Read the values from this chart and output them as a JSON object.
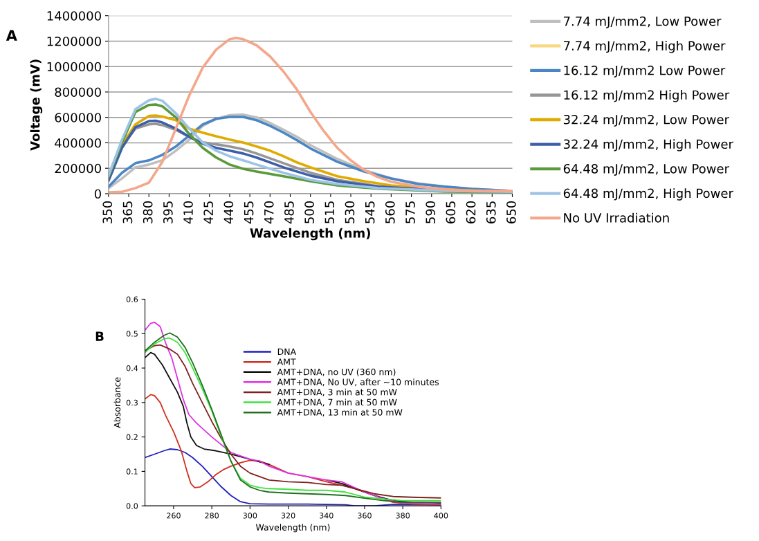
{
  "chart_data": [
    {
      "type": "line",
      "xlabel": "Wavelength (nm)",
      "ylabel": "Voltage (mV)",
      "annotations": [
        "A"
      ],
      "xlim": [
        350,
        650
      ],
      "xticks": [
        350,
        365,
        380,
        395,
        410,
        425,
        440,
        455,
        470,
        485,
        500,
        515,
        530,
        545,
        560,
        575,
        590,
        605,
        620,
        635,
        650
      ],
      "ylim": [
        0,
        1400000
      ],
      "yticks": [
        0,
        200000,
        400000,
        600000,
        800000,
        1000000,
        1200000,
        1400000
      ],
      "grid": "y",
      "legend": "right",
      "marker": "none",
      "line_style": "solid",
      "series": [
        {
          "name": "7.74 mJ/mm2, Low Power",
          "color": "#bfbfbf",
          "x": [
            350,
            360,
            370,
            380,
            390,
            400,
            410,
            420,
            430,
            440,
            450,
            460,
            470,
            480,
            490,
            500,
            520,
            540,
            560,
            580,
            600,
            620,
            650
          ],
          "values": [
            44000,
            120000,
            207000,
            229000,
            262000,
            338000,
            425000,
            534000,
            589000,
            617000,
            622000,
            600000,
            556000,
            502000,
            447000,
            382000,
            273000,
            185000,
            120000,
            81000,
            55000,
            37000,
            22000
          ]
        },
        {
          "name": "7.74 mJ/mm2, High Power",
          "color": "#f9d77e"
        },
        {
          "name": "16.12 mJ/mm2 Low Power",
          "color": "#4a86c5",
          "x": [
            350,
            360,
            370,
            380,
            390,
            400,
            410,
            420,
            430,
            440,
            450,
            460,
            470,
            480,
            490,
            500,
            520,
            540,
            560,
            580,
            600,
            620,
            650
          ],
          "values": [
            55000,
            164000,
            240000,
            262000,
            305000,
            371000,
            458000,
            545000,
            589000,
            604000,
            604000,
            578000,
            534000,
            480000,
            421000,
            356000,
            251000,
            174000,
            120000,
            76000,
            55000,
            37000,
            22000
          ]
        },
        {
          "name": "16.12 mJ/mm2 High Power",
          "color": "#969696",
          "x": [
            350,
            360,
            370,
            380,
            385,
            390,
            400,
            410,
            420,
            430,
            440,
            450,
            460,
            480,
            500,
            520,
            550,
            600,
            650
          ],
          "values": [
            109000,
            371000,
            512000,
            545000,
            549000,
            539000,
            502000,
            447000,
            403000,
            388000,
            371000,
            349000,
            316000,
            240000,
            164000,
            109000,
            59000,
            28000,
            15000
          ]
        },
        {
          "name": "32.24 mJ/mm2, Low Power",
          "color": "#e0ab00",
          "x": [
            350,
            360,
            370,
            380,
            385,
            390,
            400,
            410,
            420,
            430,
            440,
            450,
            460,
            470,
            480,
            490,
            500,
            520,
            540,
            560,
            600,
            650
          ],
          "values": [
            120000,
            382000,
            545000,
            611000,
            615000,
            606000,
            578000,
            512000,
            480000,
            451000,
            425000,
            403000,
            371000,
            338000,
            294000,
            246000,
            207000,
            137000,
            98000,
            65000,
            33000,
            15000
          ]
        },
        {
          "name": "32.24 mJ/mm2, High Power",
          "color": "#3d5ea8",
          "x": [
            350,
            360,
            370,
            380,
            385,
            390,
            400,
            410,
            420,
            430,
            440,
            450,
            460,
            480,
            500,
            520,
            550,
            600,
            650
          ],
          "values": [
            102000,
            360000,
            523000,
            571000,
            574000,
            560000,
            512000,
            447000,
            393000,
            360000,
            338000,
            316000,
            284000,
            207000,
            142000,
            98000,
            55000,
            26000,
            15000
          ]
        },
        {
          "name": "64.48 mJ/mm2, Low Power",
          "color": "#5a9a3a",
          "x": [
            350,
            360,
            370,
            380,
            385,
            390,
            400,
            410,
            420,
            430,
            440,
            450,
            460,
            480,
            500,
            520,
            550,
            600,
            650
          ],
          "values": [
            131000,
            403000,
            643000,
            698000,
            702000,
            687000,
            600000,
            469000,
            360000,
            284000,
            229000,
            196000,
            174000,
            137000,
            98000,
            65000,
            39000,
            17000,
            11000
          ]
        },
        {
          "name": "64.48 mJ/mm2, High Power",
          "color": "#9dc3e6",
          "x": [
            350,
            360,
            370,
            380,
            385,
            390,
            400,
            410,
            420,
            430,
            440,
            450,
            460,
            480,
            500,
            520,
            550,
            600,
            650
          ],
          "values": [
            142000,
            425000,
            665000,
            735000,
            746000,
            731000,
            632000,
            512000,
            403000,
            338000,
            294000,
            262000,
            229000,
            164000,
            109000,
            76000,
            44000,
            22000,
            15000
          ]
        },
        {
          "name": "No UV Irradiation",
          "color": "#f4a78a",
          "x": [
            350,
            360,
            370,
            380,
            390,
            400,
            410,
            420,
            430,
            440,
            445,
            450,
            460,
            470,
            480,
            490,
            500,
            510,
            520,
            530,
            540,
            550,
            560,
            580,
            600,
            620,
            650
          ],
          "values": [
            10000,
            15000,
            44000,
            87000,
            250000,
            512000,
            774000,
            992000,
            1134000,
            1215000,
            1226000,
            1215000,
            1167000,
            1080000,
            960000,
            818000,
            643000,
            491000,
            360000,
            262000,
            185000,
            131000,
            94000,
            55000,
            33000,
            22000,
            22000
          ]
        }
      ]
    },
    {
      "type": "line",
      "xlabel": "Wavelength (nm)",
      "ylabel": "Absorbance",
      "annotations": [
        "B"
      ],
      "xlim": [
        245,
        400
      ],
      "xticks": [
        260,
        280,
        300,
        320,
        340,
        360,
        380,
        400
      ],
      "ylim": [
        0,
        0.6
      ],
      "yticks": [
        {
          "value": 0,
          "label": "0.0"
        },
        0.1,
        0.2,
        0.3,
        0.4,
        0.5,
        0.6
      ],
      "grid": false,
      "legend": "top right",
      "marker": "none",
      "line_style": "solid",
      "series": [
        {
          "name": "DNA",
          "color": "#2020c0",
          "x": [
            245,
            250,
            255,
            258,
            262,
            266,
            270,
            275,
            280,
            285,
            290,
            295,
            300,
            310,
            330,
            350,
            355,
            365,
            375,
            400
          ],
          "values": [
            0.14,
            0.15,
            0.16,
            0.165,
            0.163,
            0.155,
            0.14,
            0.115,
            0.085,
            0.055,
            0.03,
            0.012,
            0.006,
            0.005,
            0.005,
            0.003,
            0.0,
            0.0,
            0.004,
            0.003
          ]
        },
        {
          "name": "AMT",
          "color": "#d03020",
          "x": [
            245,
            248,
            250,
            253,
            256,
            260,
            264,
            267,
            269,
            271,
            274,
            278,
            282,
            286,
            290,
            295,
            300,
            305,
            310,
            320,
            330,
            340,
            348,
            355,
            365,
            375,
            385,
            400
          ],
          "values": [
            0.31,
            0.323,
            0.32,
            0.3,
            0.26,
            0.215,
            0.16,
            0.1,
            0.065,
            0.053,
            0.055,
            0.07,
            0.09,
            0.105,
            0.115,
            0.125,
            0.132,
            0.13,
            0.12,
            0.095,
            0.085,
            0.07,
            0.06,
            0.05,
            0.03,
            0.01,
            0.005,
            0.003
          ]
        },
        {
          "name": "AMT+DNA, no UV (360 nm)",
          "color": "#101010",
          "x": [
            245,
            248,
            250,
            254,
            258,
            262,
            265,
            267,
            269,
            272,
            276,
            282,
            290,
            300,
            310,
            320,
            330,
            340,
            348,
            355,
            365,
            375,
            385,
            400
          ],
          "values": [
            0.43,
            0.445,
            0.44,
            0.41,
            0.37,
            0.33,
            0.29,
            0.24,
            0.2,
            0.175,
            0.165,
            0.16,
            0.15,
            0.135,
            0.12,
            null,
            null,
            0.075,
            0.065,
            0.05,
            0.03,
            0.015,
            0.01,
            0.008
          ]
        },
        {
          "name": "AMT+DNA, No UV, after ~10 minutes",
          "color": "#e030e0",
          "x": [
            245,
            248,
            250,
            253,
            256,
            259,
            262,
            265,
            268,
            272,
            280,
            290,
            300,
            305,
            310,
            320,
            330,
            340,
            348,
            352,
            360,
            370,
            380,
            400
          ],
          "values": [
            0.51,
            0.53,
            0.533,
            0.52,
            0.47,
            0.43,
            0.37,
            0.31,
            0.265,
            0.24,
            0.2,
            0.155,
            0.135,
            0.13,
            0.115,
            0.095,
            0.085,
            0.075,
            0.07,
            0.06,
            0.04,
            0.02,
            0.008,
            0.005
          ]
        },
        {
          "name": "AMT+DNA, 3 min at 50 mW",
          "color": "#802020",
          "x": [
            245,
            250,
            253,
            258,
            262,
            266,
            270,
            275,
            280,
            285,
            290,
            295,
            300,
            305,
            310,
            320,
            330,
            340,
            348,
            355,
            365,
            375,
            385,
            400
          ],
          "values": [
            0.45,
            0.465,
            0.467,
            0.455,
            0.44,
            0.405,
            0.355,
            0.3,
            0.245,
            0.195,
            0.15,
            0.115,
            0.095,
            0.085,
            0.075,
            0.07,
            0.068,
            0.062,
            0.06,
            0.05,
            0.035,
            0.027,
            0.025,
            0.023
          ]
        },
        {
          "name": "AMT+DNA, 7 min at 50 mW",
          "color": "#40e040",
          "x": [
            245,
            250,
            255,
            258,
            262,
            266,
            270,
            275,
            280,
            285,
            290,
            295,
            300,
            305,
            310,
            320,
            330,
            340,
            350,
            360,
            370,
            380,
            400
          ],
          "values": [
            0.445,
            0.47,
            0.485,
            0.487,
            0.475,
            0.445,
            0.4,
            0.34,
            0.275,
            0.2,
            0.13,
            0.08,
            0.06,
            0.053,
            0.05,
            0.048,
            0.045,
            0.045,
            0.04,
            0.025,
            0.02,
            0.015,
            0.015
          ]
        },
        {
          "name": "AMT+DNA, 13 min at 50 mW",
          "color": "#207020",
          "x": [
            245,
            250,
            255,
            258,
            262,
            266,
            270,
            275,
            280,
            285,
            290,
            295,
            300,
            305,
            310,
            320,
            330,
            340,
            350,
            360,
            370,
            380,
            400
          ],
          "values": [
            0.45,
            0.475,
            0.495,
            0.502,
            0.49,
            0.46,
            0.415,
            0.35,
            0.28,
            0.205,
            0.13,
            0.075,
            0.055,
            0.045,
            0.04,
            0.037,
            0.035,
            0.033,
            0.03,
            0.022,
            0.015,
            0.01,
            0.01
          ]
        }
      ]
    }
  ]
}
